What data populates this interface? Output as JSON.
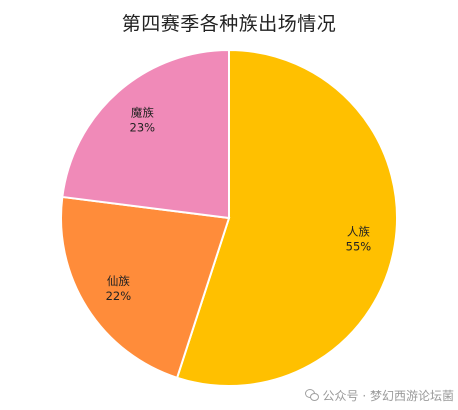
{
  "chart_data": {
    "type": "pie",
    "title": "第四赛季各种族出场情况",
    "slices": [
      {
        "label": "人族",
        "value": 55,
        "value_text": "55%",
        "color": "#FFC000"
      },
      {
        "label": "仙族",
        "value": 22,
        "value_text": "22%",
        "color": "#FF8C3A"
      },
      {
        "label": "魔族",
        "value": 23,
        "value_text": "23%",
        "color": "#F08AB8"
      }
    ],
    "start_angle": "12 o'clock",
    "direction": "clockwise",
    "slice_border_color": "#FFFFFF"
  },
  "watermark": {
    "text": "公众号 · 梦幻西游论坛菌"
  }
}
